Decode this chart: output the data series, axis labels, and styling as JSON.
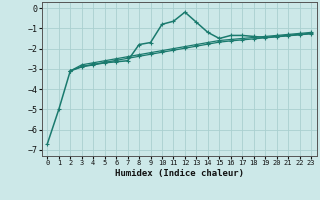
{
  "xlabel": "Humidex (Indice chaleur)",
  "background_color": "#cce8e8",
  "grid_color": "#aad0d0",
  "line_color": "#1a7a6e",
  "xlim": [
    -0.5,
    23.5
  ],
  "ylim": [
    -7.3,
    0.3
  ],
  "xticks": [
    0,
    1,
    2,
    3,
    4,
    5,
    6,
    7,
    8,
    9,
    10,
    11,
    12,
    13,
    14,
    15,
    16,
    17,
    18,
    19,
    20,
    21,
    22,
    23
  ],
  "yticks": [
    0,
    -1,
    -2,
    -3,
    -4,
    -5,
    -6,
    -7
  ],
  "series": [
    [
      null,
      null,
      -3.1,
      -2.8,
      -2.7,
      -2.6,
      -2.5,
      -2.4,
      -2.3,
      -2.2,
      -2.1,
      -2.0,
      -1.9,
      -1.8,
      -1.7,
      -1.6,
      -1.55,
      -1.5,
      -1.45,
      -1.4,
      -1.35,
      -1.3,
      -1.25,
      -1.2
    ],
    [
      null,
      null,
      -3.1,
      -2.88,
      -2.78,
      -2.68,
      -2.58,
      -2.48,
      -2.38,
      -2.28,
      -2.18,
      -2.08,
      -1.98,
      -1.88,
      -1.78,
      -1.68,
      -1.62,
      -1.57,
      -1.52,
      -1.47,
      -1.42,
      -1.37,
      -1.32,
      -1.27
    ],
    [
      -6.7,
      -5.0,
      -3.1,
      -2.9,
      -2.8,
      -2.7,
      -2.65,
      -2.6,
      -1.8,
      -1.7,
      -0.8,
      -0.65,
      -0.2,
      -0.7,
      -1.2,
      -1.5,
      -1.35,
      -1.35,
      -1.4,
      -1.45,
      -1.4,
      -1.35,
      -1.3,
      -1.25
    ]
  ]
}
